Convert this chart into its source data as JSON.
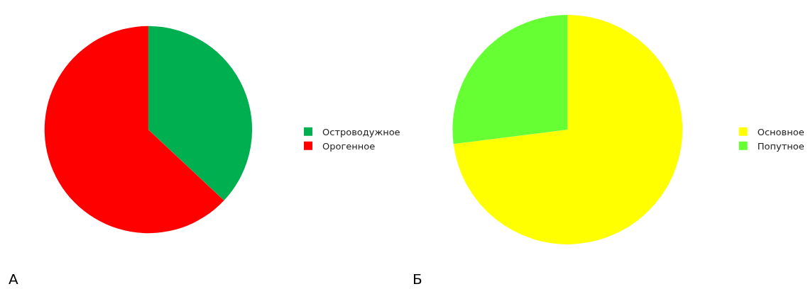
{
  "chart_data": [
    {
      "type": "pie",
      "categories": [
        "Островодужное",
        "Орогенное"
      ],
      "values": [
        37,
        63
      ],
      "colors": [
        "#00b050",
        "#ff0000"
      ],
      "legend": "right",
      "annotations": [
        "А"
      ]
    },
    {
      "type": "pie",
      "categories": [
        "Основное",
        "Попутное"
      ],
      "values": [
        73,
        27
      ],
      "colors": [
        "#ffff00",
        "#66ff33"
      ],
      "legend": "right",
      "annotations": [
        "Б"
      ]
    }
  ]
}
